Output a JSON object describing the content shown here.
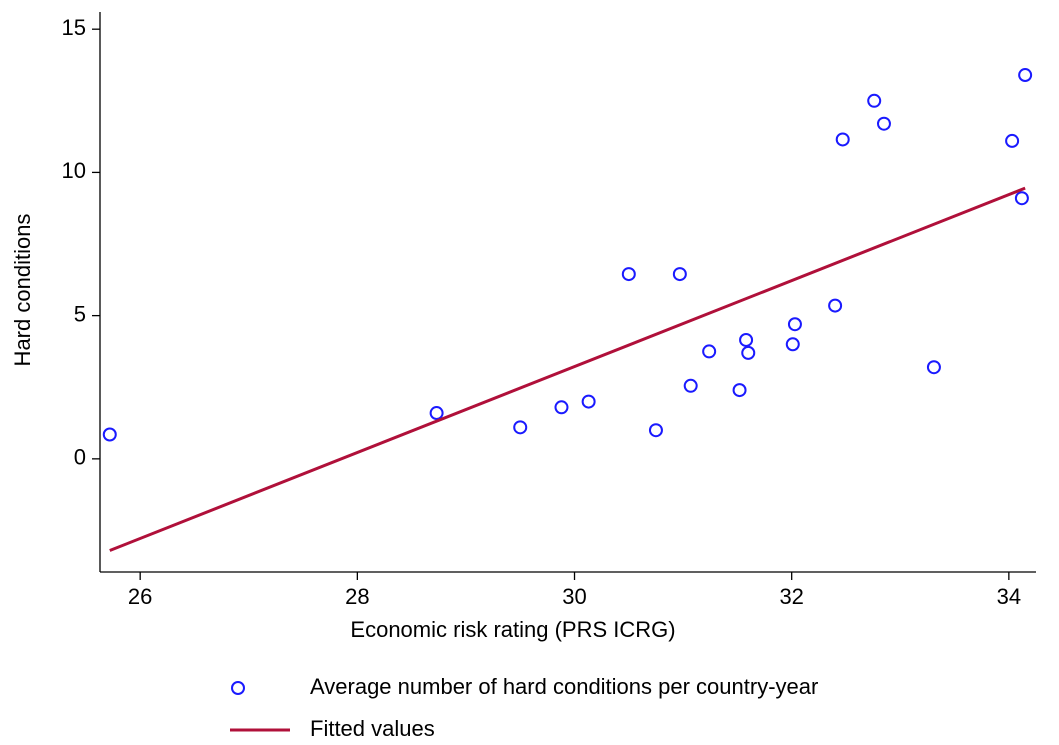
{
  "chart_data": {
    "type": "scatter",
    "x_label": "Economic risk rating (PRS ICRG)",
    "y_label": "Hard conditions",
    "xlim": [
      25.63,
      34.25
    ],
    "ylim": [
      -3.95,
      15.6
    ],
    "xticks": [
      26,
      28,
      30,
      32,
      34
    ],
    "yticks": [
      0,
      5,
      10,
      15
    ],
    "grid": false,
    "legend": "bottom",
    "series": [
      {
        "name": "Average number of hard conditions per country-year",
        "type": "scatter",
        "color": "#1a1aff",
        "x": [
          25.72,
          28.73,
          29.5,
          29.88,
          30.13,
          30.5,
          30.75,
          30.97,
          31.07,
          31.24,
          31.52,
          31.58,
          31.6,
          32.01,
          32.03,
          32.4,
          32.47,
          32.76,
          32.85,
          33.31,
          34.03,
          34.12,
          34.15
        ],
        "values": [
          0.85,
          1.6,
          1.1,
          1.8,
          2.0,
          6.45,
          1.0,
          6.45,
          2.55,
          3.75,
          2.4,
          4.15,
          3.7,
          4.0,
          4.7,
          5.35,
          11.15,
          12.5,
          11.7,
          3.2,
          11.1,
          9.1,
          13.4
        ]
      },
      {
        "name": "Fitted values",
        "type": "line",
        "color": "#b0103a",
        "x": [
          25.72,
          34.15
        ],
        "values": [
          -3.2,
          9.45
        ]
      }
    ]
  }
}
